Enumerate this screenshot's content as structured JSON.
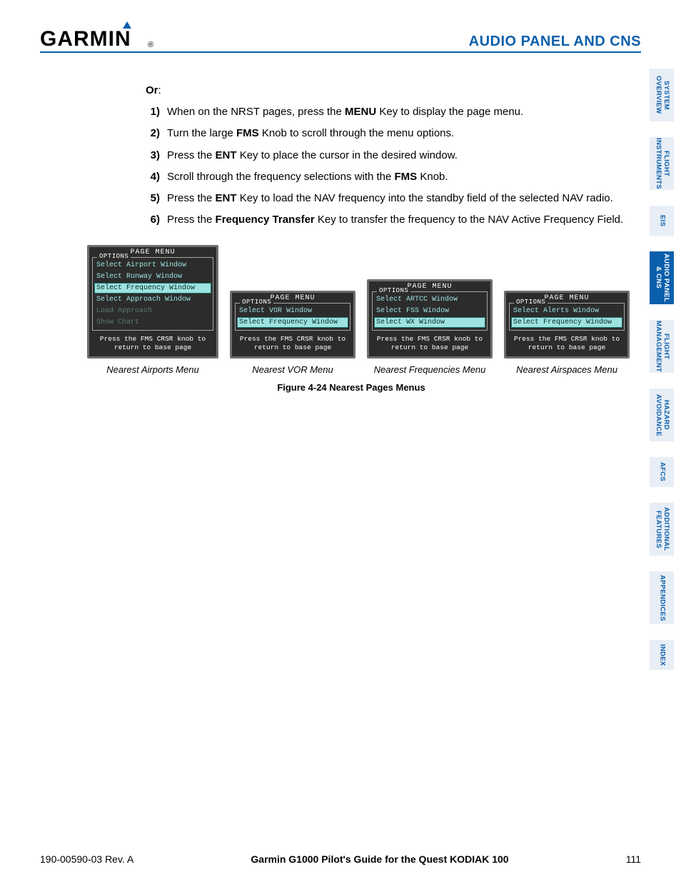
{
  "header": {
    "logo_text": "GARMIN",
    "section_title": "AUDIO PANEL AND CNS"
  },
  "or_label": "Or",
  "steps": [
    {
      "num": "1)",
      "parts": [
        "When on the NRST pages, press the ",
        {
          "b": "MENU"
        },
        " Key to display the page menu."
      ]
    },
    {
      "num": "2)",
      "parts": [
        "Turn the large ",
        {
          "b": "FMS"
        },
        " Knob to scroll through the menu options."
      ]
    },
    {
      "num": "3)",
      "parts": [
        "Press the ",
        {
          "b": "ENT"
        },
        " Key to place the cursor in the desired window."
      ]
    },
    {
      "num": "4)",
      "parts": [
        "Scroll through the frequency selections with the ",
        {
          "b": "FMS"
        },
        " Knob."
      ]
    },
    {
      "num": "5)",
      "parts": [
        "Press the ",
        {
          "b": "ENT"
        },
        " Key to load the NAV frequency into the standby field of the selected NAV radio."
      ]
    },
    {
      "num": "6)",
      "parts": [
        "Press the ",
        {
          "b": "Frequency Transfer"
        },
        " Key to transfer the frequency to the NAV Active Frequency Field."
      ]
    }
  ],
  "menus": [
    {
      "caption": "Nearest Airports Menu",
      "title": "PAGE MENU",
      "options_label": "OPTIONS",
      "items": [
        {
          "text": "Select Airport Window",
          "sel": false,
          "dim": false
        },
        {
          "text": "Select Runway Window",
          "sel": false,
          "dim": false
        },
        {
          "text": "Select Frequency Window",
          "sel": true,
          "dim": false
        },
        {
          "text": "Select Approach Window",
          "sel": false,
          "dim": false
        },
        {
          "text": "Load Approach",
          "sel": false,
          "dim": true
        },
        {
          "text": "Show Chart",
          "sel": false,
          "dim": true
        }
      ],
      "footer": "Press the FMS CRSR knob to return to base page"
    },
    {
      "caption": "Nearest VOR Menu",
      "title": "PAGE MENU",
      "options_label": "OPTIONS",
      "items": [
        {
          "text": "Select VOR Window",
          "sel": false,
          "dim": false
        },
        {
          "text": "Select Frequency Window",
          "sel": true,
          "dim": false
        }
      ],
      "footer": "Press the FMS CRSR knob to return to base page"
    },
    {
      "caption": "Nearest Frequencies Menu",
      "title": "PAGE MENU",
      "options_label": "OPTIONS",
      "items": [
        {
          "text": "Select ARTCC Window",
          "sel": false,
          "dim": false
        },
        {
          "text": "Select FSS Window",
          "sel": false,
          "dim": false
        },
        {
          "text": "Select WX Window",
          "sel": true,
          "dim": false
        }
      ],
      "footer": "Press the FMS CRSR knob to return to base page"
    },
    {
      "caption": "Nearest Airspaces Menu",
      "title": "PAGE MENU",
      "options_label": "OPTIONS",
      "items": [
        {
          "text": "Select Alerts Window",
          "sel": false,
          "dim": false
        },
        {
          "text": "Select Frequency Window",
          "sel": true,
          "dim": false
        }
      ],
      "footer": "Press the FMS CRSR knob to return to base page"
    }
  ],
  "figure_label": "Figure 4-24  Nearest Pages Menus",
  "side_tabs": [
    {
      "label": "SYSTEM OVERVIEW",
      "active": false,
      "short": false
    },
    {
      "label": "FLIGHT INSTRUMENTS",
      "active": false,
      "short": false
    },
    {
      "label": "EIS",
      "active": false,
      "short": true
    },
    {
      "label": "AUDIO PANEL & CNS",
      "active": true,
      "short": false
    },
    {
      "label": "FLIGHT MANAGEMENT",
      "active": false,
      "short": false
    },
    {
      "label": "HAZARD AVOIDANCE",
      "active": false,
      "short": false
    },
    {
      "label": "AFCS",
      "active": false,
      "short": true
    },
    {
      "label": "ADDITIONAL FEATURES",
      "active": false,
      "short": false
    },
    {
      "label": "APPENDICES",
      "active": false,
      "short": false
    },
    {
      "label": "INDEX",
      "active": false,
      "short": true
    }
  ],
  "footer": {
    "doc": "190-00590-03  Rev. A",
    "title": "Garmin G1000 Pilot's Guide for the Quest KODIAK 100",
    "page": "111"
  },
  "colors": {
    "brand": "#0b5fab",
    "tab_bg": "#e8eef5",
    "panel_bg": "#2c2c2c",
    "panel_border": "#6e6e6e",
    "item_color": "#9de3e0",
    "item_dim": "#5b7776"
  }
}
